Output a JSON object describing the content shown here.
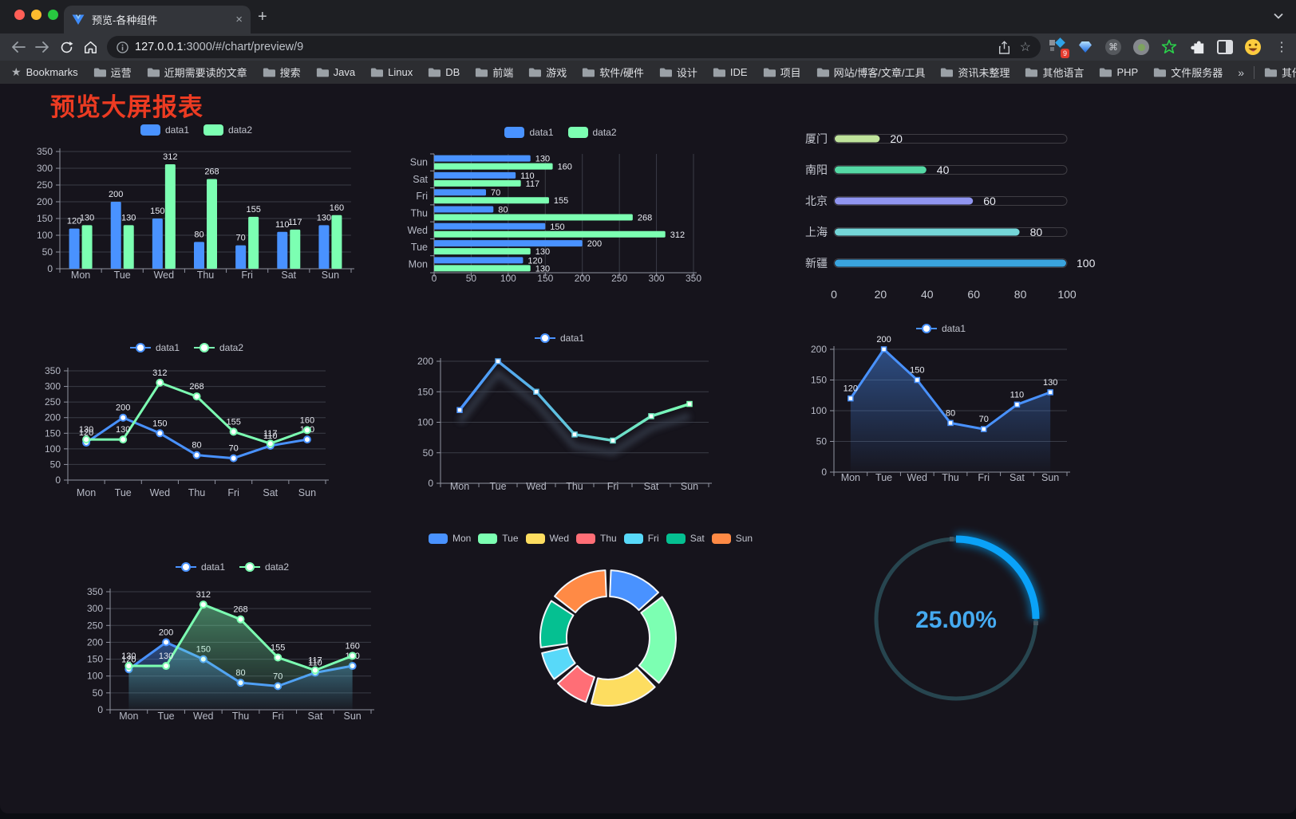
{
  "browser": {
    "tab": {
      "title": "预览-各种组件",
      "close_glyph": "×",
      "new_tab_glyph": "+"
    },
    "url": {
      "origin": "127.0.0.1",
      "rest": ":3000/#/chart/preview/9"
    },
    "extensions": {
      "badge_count": "9",
      "command_glyph": "⌘",
      "menu_glyph": "⋮"
    },
    "bookmarks_bar": {
      "star_glyph": "★",
      "star_label": "Bookmarks",
      "folders": [
        "运营",
        "近期需要读的文章",
        "搜索",
        "Java",
        "Linux",
        "DB",
        "前端",
        "游戏",
        "软件/硬件",
        "设计",
        "IDE",
        "项目",
        "网站/博客/文章/工具",
        "资讯未整理",
        "其他语言",
        "PHP",
        "文件服务器"
      ],
      "overflow_glyph": "»",
      "other_bookmarks": "其他书签"
    }
  },
  "page": {
    "title": "预览大屏报表"
  },
  "chart_data": [
    {
      "id": "grouped-bar",
      "type": "bar",
      "orientation": "vertical",
      "categories": [
        "Mon",
        "Tue",
        "Wed",
        "Thu",
        "Fri",
        "Sat",
        "Sun"
      ],
      "series": [
        {
          "name": "data1",
          "color": "#4992ff",
          "values": [
            120,
            200,
            150,
            80,
            70,
            110,
            130
          ]
        },
        {
          "name": "data2",
          "color": "#7cffb2",
          "values": [
            130,
            130,
            312,
            268,
            155,
            117,
            160
          ]
        }
      ],
      "ylim": [
        0,
        350
      ],
      "yticks": [
        0,
        50,
        100,
        150,
        200,
        250,
        300,
        350
      ],
      "legend": [
        "data1",
        "data2"
      ],
      "legend_position": "top",
      "grid": true,
      "show_labels": true
    },
    {
      "id": "horizontal-bar",
      "type": "bar",
      "orientation": "horizontal",
      "categories": [
        "Mon",
        "Tue",
        "Wed",
        "Thu",
        "Fri",
        "Sat",
        "Sun"
      ],
      "series": [
        {
          "name": "data1",
          "color": "#4992ff",
          "values": [
            120,
            200,
            150,
            80,
            70,
            110,
            130
          ]
        },
        {
          "name": "data2",
          "color": "#7cffb2",
          "values": [
            130,
            130,
            312,
            268,
            155,
            117,
            160
          ]
        }
      ],
      "xlim": [
        0,
        350
      ],
      "xticks": [
        0,
        50,
        100,
        150,
        200,
        250,
        300,
        350
      ],
      "legend": [
        "data1",
        "data2"
      ],
      "legend_position": "top",
      "grid": true,
      "show_labels": true
    },
    {
      "id": "city-progress",
      "type": "bar",
      "orientation": "horizontal",
      "style": "progress",
      "categories": [
        "厦门",
        "南阳",
        "北京",
        "上海",
        "新疆"
      ],
      "values": [
        20,
        40,
        60,
        80,
        100
      ],
      "colors": [
        "#bfe39b",
        "#55d9a5",
        "#9095f0",
        "#74d6d8",
        "#3aa4de"
      ],
      "xlim": [
        0,
        100
      ],
      "xticks": [
        0,
        20,
        40,
        60,
        80,
        100
      ],
      "show_labels": true
    },
    {
      "id": "two-line",
      "type": "line",
      "categories": [
        "Mon",
        "Tue",
        "Wed",
        "Thu",
        "Fri",
        "Sat",
        "Sun"
      ],
      "series": [
        {
          "name": "data1",
          "color": "#4992ff",
          "values": [
            120,
            200,
            150,
            80,
            70,
            110,
            130
          ]
        },
        {
          "name": "data2",
          "color": "#7cffb2",
          "values": [
            130,
            130,
            312,
            268,
            155,
            117,
            160
          ]
        }
      ],
      "ylim": [
        0,
        350
      ],
      "yticks": [
        0,
        50,
        100,
        150,
        200,
        250,
        300,
        350
      ],
      "legend": [
        "data1",
        "data2"
      ],
      "legend_position": "top",
      "grid": true,
      "show_labels": true
    },
    {
      "id": "gradient-line",
      "type": "line",
      "categories": [
        "Mon",
        "Tue",
        "Wed",
        "Thu",
        "Fri",
        "Sat",
        "Sun"
      ],
      "series": [
        {
          "name": "data1",
          "color_gradient": [
            "#4992ff",
            "#7cffb2"
          ],
          "values": [
            120,
            200,
            150,
            80,
            70,
            110,
            130
          ]
        }
      ],
      "ylim": [
        0,
        200
      ],
      "yticks": [
        0,
        50,
        100,
        150,
        200
      ],
      "legend": [
        "data1"
      ],
      "legend_position": "top",
      "grid": true,
      "show_labels": false
    },
    {
      "id": "area-line",
      "type": "area",
      "categories": [
        "Mon",
        "Tue",
        "Wed",
        "Thu",
        "Fri",
        "Sat",
        "Sun"
      ],
      "series": [
        {
          "name": "data1",
          "color": "#4992ff",
          "values": [
            120,
            200,
            150,
            80,
            70,
            110,
            130
          ]
        }
      ],
      "ylim": [
        0,
        200
      ],
      "yticks": [
        0,
        50,
        100,
        150,
        200
      ],
      "legend": [
        "data1"
      ],
      "legend_position": "top",
      "grid": true,
      "show_labels": true
    },
    {
      "id": "two-area",
      "type": "area",
      "categories": [
        "Mon",
        "Tue",
        "Wed",
        "Thu",
        "Fri",
        "Sat",
        "Sun"
      ],
      "series": [
        {
          "name": "data1",
          "color": "#4992ff",
          "values": [
            120,
            200,
            150,
            80,
            70,
            110,
            130
          ]
        },
        {
          "name": "data2",
          "color": "#7cffb2",
          "values": [
            130,
            130,
            312,
            268,
            155,
            117,
            160
          ]
        }
      ],
      "ylim": [
        0,
        350
      ],
      "yticks": [
        0,
        50,
        100,
        150,
        200,
        250,
        300,
        350
      ],
      "legend": [
        "data1",
        "data2"
      ],
      "legend_position": "top",
      "grid": true,
      "show_labels": true
    },
    {
      "id": "donut",
      "type": "pie",
      "labels": [
        "Mon",
        "Tue",
        "Wed",
        "Thu",
        "Fri",
        "Sat",
        "Sun"
      ],
      "values": [
        120,
        200,
        150,
        80,
        70,
        110,
        130
      ],
      "colors": [
        "#4992ff",
        "#7cffb2",
        "#fddd60",
        "#ff6e76",
        "#58d9f9",
        "#05c091",
        "#ff8a45"
      ],
      "legend_position": "top",
      "inner_radius_ratio": 0.61,
      "border_color": "#f2f5f9"
    },
    {
      "id": "gauge",
      "type": "gauge",
      "value": 25,
      "max": 100,
      "label": "25.00%",
      "color": "#0aa2f8",
      "track_color": "#27454f",
      "text_color": "#45aaf0"
    }
  ]
}
